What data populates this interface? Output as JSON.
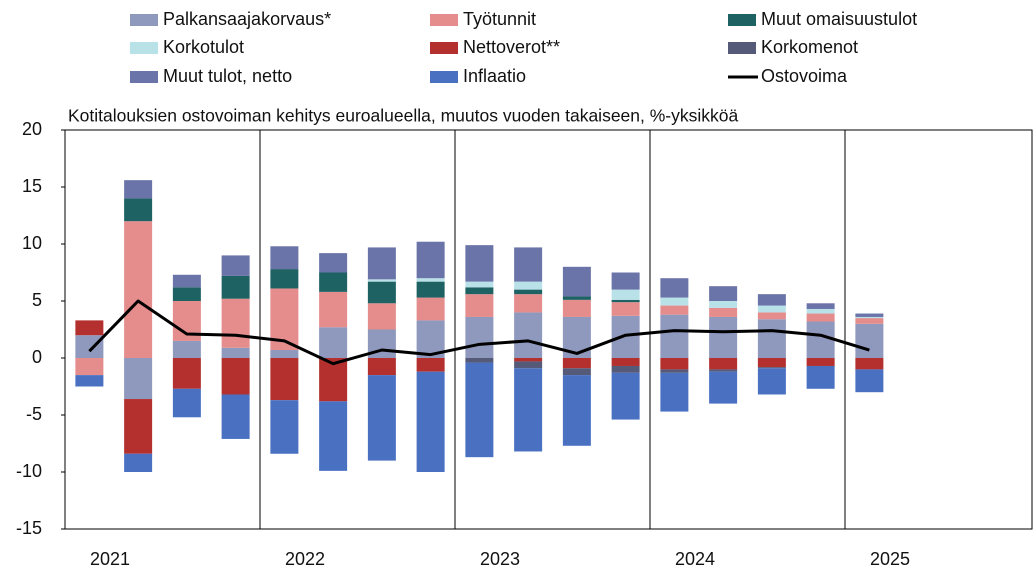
{
  "chart_data": {
    "type": "stacked-bar-line",
    "title": "Kotitalouksien ostovoiman kehitys euroalueella, muutos vuoden takaiseen, %-yksikköä",
    "years": [
      "2021",
      "2022",
      "2023",
      "2024",
      "2025"
    ],
    "ylim": [
      -15,
      20
    ],
    "yticks": [
      -15,
      -10,
      -5,
      0,
      5,
      10,
      15,
      20
    ],
    "series": [
      {
        "name": "Palkansaajakorvaus*",
        "color": "#8f98bd",
        "values": [
          2,
          -3.6,
          1.5,
          0.9,
          0.7,
          2.7,
          2.5,
          3.3,
          3.6,
          4.0,
          3.6,
          3.7,
          3.8,
          3.6,
          3.4,
          3.2,
          3.0
        ]
      },
      {
        "name": "Työtunnit",
        "color": "#e58c8c",
        "values": [
          -1.5,
          12,
          3.5,
          4.3,
          5.4,
          3.1,
          2.3,
          2.0,
          2.0,
          1.6,
          1.5,
          1.2,
          0.8,
          0.8,
          0.6,
          0.7,
          0.5
        ]
      },
      {
        "name": "Muut omaisuustulot",
        "color": "#1f6264",
        "values": [
          0,
          2,
          1.2,
          2,
          1.7,
          1.7,
          1.9,
          1.4,
          0.6,
          0.4,
          0.3,
          0.2,
          0,
          0,
          0,
          0,
          0
        ]
      },
      {
        "name": "Korkotulot",
        "color": "#b9e1e8",
        "values": [
          0,
          0,
          0,
          0,
          0,
          0,
          0.2,
          0.3,
          0.5,
          0.7,
          0,
          0.9,
          0.7,
          0.6,
          0.6,
          0.4,
          0.1
        ]
      },
      {
        "name": "Nettoverot**",
        "color": "#b3302f",
        "values": [
          1.3,
          -4.8,
          -2.7,
          -3.2,
          -3.7,
          -3.8,
          -1.5,
          -1.2,
          0,
          -0.3,
          -0.9,
          -0.7,
          -1.0,
          -1.0,
          -0.8,
          -0.7,
          -1.0
        ]
      },
      {
        "name": "Korkomenot",
        "color": "#555a78",
        "values": [
          0,
          0,
          0,
          0,
          0,
          0,
          0,
          0,
          -0.4,
          -0.6,
          -0.6,
          -0.6,
          -0.3,
          -0.2,
          -0.1,
          0,
          0
        ]
      },
      {
        "name": "Muut tulot, netto",
        "color": "#6b74a8",
        "values": [
          0,
          1.6,
          1.1,
          1.8,
          2.0,
          1.7,
          2.8,
          3.2,
          3.2,
          3.0,
          2.6,
          1.5,
          1.7,
          1.3,
          1.0,
          0.5,
          0.3
        ]
      },
      {
        "name": "Inflaatio",
        "color": "#4a70c2",
        "values": [
          -1.0,
          -1.6,
          -2.5,
          -3.9,
          -4.7,
          -6.1,
          -7.5,
          -8.8,
          -8.3,
          -7.3,
          -6.2,
          -4.1,
          -3.4,
          -2.8,
          -2.3,
          -2.0,
          -2.0
        ]
      }
    ],
    "line": {
      "name": "Ostovoima",
      "color": "#000000",
      "values": [
        0.6,
        5,
        2.1,
        2,
        1.5,
        -0.5,
        0.7,
        0.3,
        1.2,
        1.5,
        0.4,
        2.0,
        2.4,
        2.3,
        2.4,
        2.0,
        0.7
      ]
    }
  }
}
